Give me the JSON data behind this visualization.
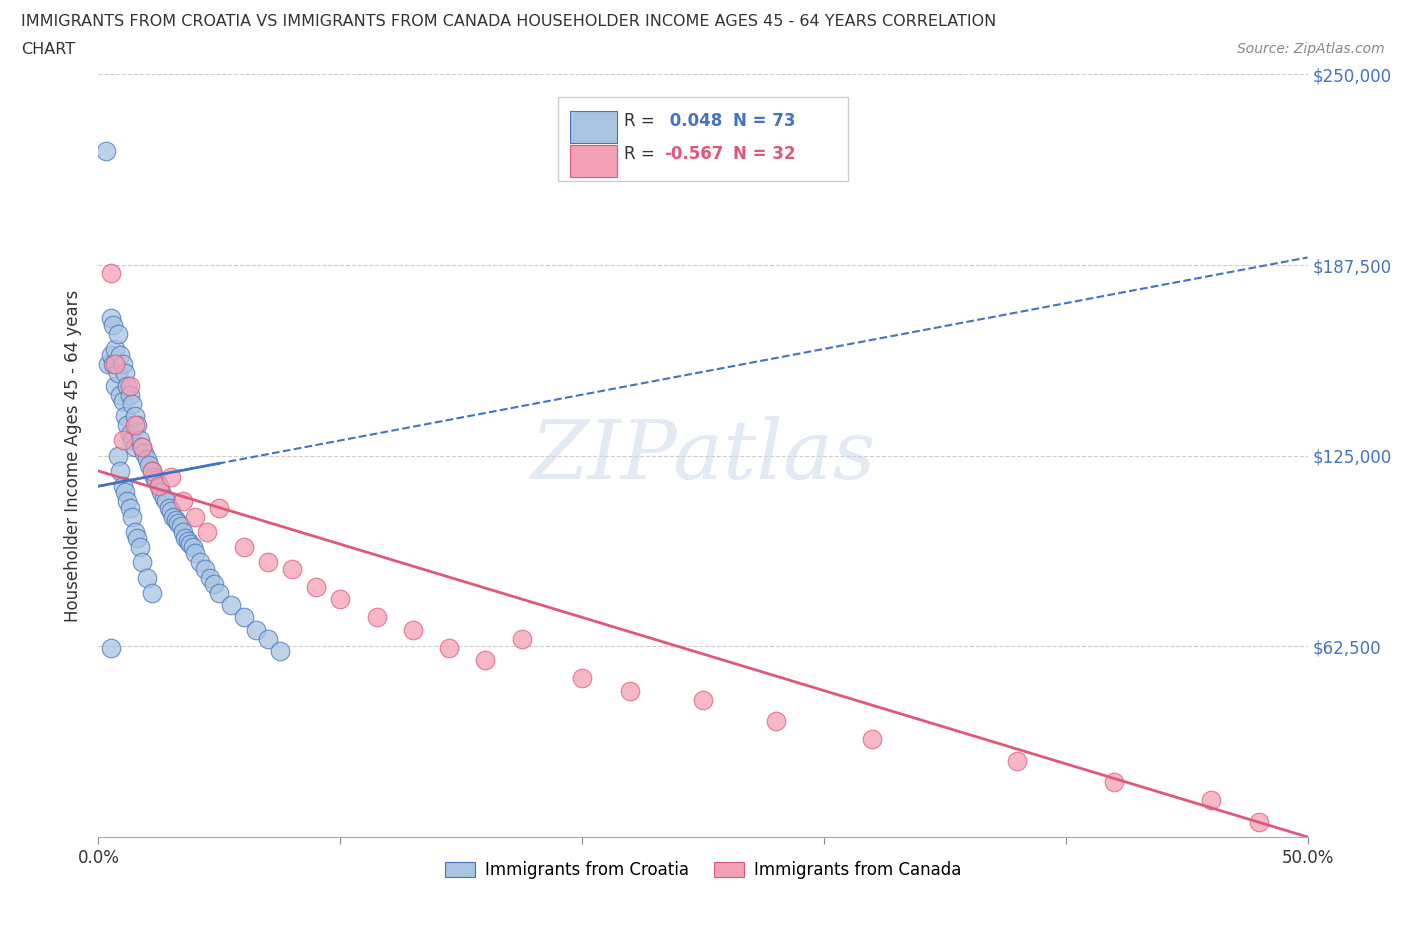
{
  "title_line1": "IMMIGRANTS FROM CROATIA VS IMMIGRANTS FROM CANADA HOUSEHOLDER INCOME AGES 45 - 64 YEARS CORRELATION",
  "title_line2": "CHART",
  "source": "Source: ZipAtlas.com",
  "ylabel": "Householder Income Ages 45 - 64 years",
  "xlim": [
    0.0,
    0.5
  ],
  "ylim": [
    0,
    250000
  ],
  "xtick_vals": [
    0.0,
    0.1,
    0.2,
    0.3,
    0.4,
    0.5
  ],
  "ytick_vals": [
    0,
    62500,
    125000,
    187500,
    250000
  ],
  "ytick_labels": [
    "",
    "$62,500",
    "$125,000",
    "$187,500",
    "$250,000"
  ],
  "croatia_R": 0.048,
  "croatia_N": 73,
  "canada_R": -0.567,
  "canada_N": 32,
  "croatia_color": "#a8c4e0",
  "canada_color": "#f4a0b5",
  "croatia_line_color": "#4472c4",
  "canada_line_color": "#e05878",
  "background_color": "#ffffff",
  "legend_label_croatia": "Immigrants from Croatia",
  "legend_label_canada": "Immigrants from Canada",
  "croatia_x": [
    0.003,
    0.004,
    0.005,
    0.005,
    0.006,
    0.006,
    0.007,
    0.007,
    0.008,
    0.008,
    0.009,
    0.009,
    0.01,
    0.01,
    0.011,
    0.011,
    0.012,
    0.012,
    0.013,
    0.013,
    0.014,
    0.014,
    0.015,
    0.015,
    0.016,
    0.017,
    0.018,
    0.019,
    0.02,
    0.021,
    0.022,
    0.023,
    0.024,
    0.025,
    0.026,
    0.027,
    0.028,
    0.029,
    0.03,
    0.031,
    0.032,
    0.033,
    0.034,
    0.035,
    0.036,
    0.037,
    0.038,
    0.039,
    0.04,
    0.042,
    0.044,
    0.046,
    0.048,
    0.05,
    0.055,
    0.06,
    0.065,
    0.07,
    0.075,
    0.008,
    0.009,
    0.01,
    0.011,
    0.012,
    0.013,
    0.014,
    0.015,
    0.016,
    0.017,
    0.018,
    0.02,
    0.022,
    0.005
  ],
  "croatia_y": [
    225000,
    155000,
    170000,
    158000,
    168000,
    155000,
    160000,
    148000,
    165000,
    152000,
    158000,
    145000,
    155000,
    143000,
    152000,
    138000,
    148000,
    135000,
    145000,
    132000,
    142000,
    130000,
    138000,
    128000,
    135000,
    130000,
    128000,
    126000,
    124000,
    122000,
    120000,
    118000,
    117000,
    115000,
    113000,
    111000,
    110000,
    108000,
    107000,
    105000,
    104000,
    103000,
    102000,
    100000,
    98000,
    97000,
    96000,
    95000,
    93000,
    90000,
    88000,
    85000,
    83000,
    80000,
    76000,
    72000,
    68000,
    65000,
    61000,
    125000,
    120000,
    115000,
    113000,
    110000,
    108000,
    105000,
    100000,
    98000,
    95000,
    90000,
    85000,
    80000,
    62000
  ],
  "canada_x": [
    0.005,
    0.007,
    0.01,
    0.013,
    0.015,
    0.018,
    0.022,
    0.025,
    0.03,
    0.035,
    0.04,
    0.045,
    0.05,
    0.06,
    0.07,
    0.08,
    0.09,
    0.1,
    0.115,
    0.13,
    0.145,
    0.16,
    0.175,
    0.2,
    0.22,
    0.25,
    0.28,
    0.32,
    0.38,
    0.42,
    0.46,
    0.48
  ],
  "canada_y": [
    185000,
    155000,
    130000,
    148000,
    135000,
    128000,
    120000,
    115000,
    118000,
    110000,
    105000,
    100000,
    108000,
    95000,
    90000,
    88000,
    82000,
    78000,
    72000,
    68000,
    62000,
    58000,
    65000,
    52000,
    48000,
    45000,
    38000,
    32000,
    25000,
    18000,
    12000,
    5000
  ],
  "croatia_trend_x0": 0.0,
  "croatia_trend_y0": 115000,
  "croatia_trend_x1": 0.5,
  "croatia_trend_y1": 190000,
  "canada_trend_x0": 0.0,
  "canada_trend_y0": 120000,
  "canada_trend_x1": 0.5,
  "canada_trend_y1": 0
}
